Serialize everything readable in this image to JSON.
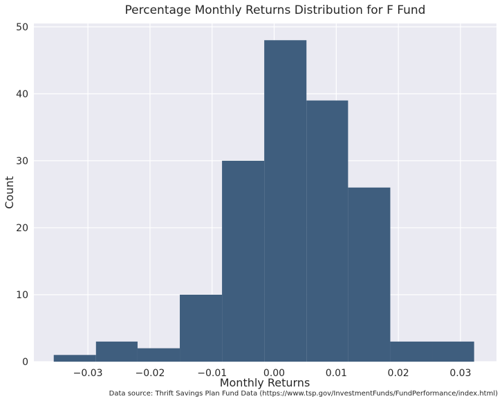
{
  "chart_data": {
    "type": "bar",
    "title": "Percentage Monthly Returns Distribution for F Fund",
    "xlabel": "Monthly Returns",
    "ylabel": "Count",
    "xlim": [
      -0.0387,
      0.0358
    ],
    "ylim": [
      0,
      50.5
    ],
    "grid": true,
    "bins": [
      {
        "start": -0.0355,
        "end": -0.0287,
        "count": 1
      },
      {
        "start": -0.0287,
        "end": -0.022,
        "count": 3
      },
      {
        "start": -0.022,
        "end": -0.0152,
        "count": 2
      },
      {
        "start": -0.0152,
        "end": -0.0084,
        "count": 10
      },
      {
        "start": -0.0084,
        "end": -0.0016,
        "count": 30
      },
      {
        "start": -0.0016,
        "end": 0.0052,
        "count": 48
      },
      {
        "start": 0.0052,
        "end": 0.0119,
        "count": 39
      },
      {
        "start": 0.0119,
        "end": 0.0187,
        "count": 26
      },
      {
        "start": 0.0187,
        "end": 0.0255,
        "count": 3
      },
      {
        "start": 0.0255,
        "end": 0.0322,
        "count": 3
      }
    ],
    "x_ticks": [
      {
        "value": -0.03,
        "label": "−0.03"
      },
      {
        "value": -0.02,
        "label": "−0.02"
      },
      {
        "value": -0.01,
        "label": "−0.01"
      },
      {
        "value": 0.0,
        "label": "0.00"
      },
      {
        "value": 0.01,
        "label": "0.01"
      },
      {
        "value": 0.02,
        "label": "0.02"
      },
      {
        "value": 0.03,
        "label": "0.03"
      }
    ],
    "y_ticks": [
      {
        "value": 0,
        "label": "0"
      },
      {
        "value": 10,
        "label": "10"
      },
      {
        "value": 20,
        "label": "20"
      },
      {
        "value": 30,
        "label": "30"
      },
      {
        "value": 40,
        "label": "40"
      },
      {
        "value": 50,
        "label": "50"
      }
    ],
    "source_note": "Data source: Thrift Savings Plan Fund Data (https://www.tsp.gov/InvestmentFunds/FundPerformance/index.html)"
  },
  "colors": {
    "background": "#eaeaf2",
    "grid": "#ffffff",
    "bar": "#3f5e7e"
  }
}
